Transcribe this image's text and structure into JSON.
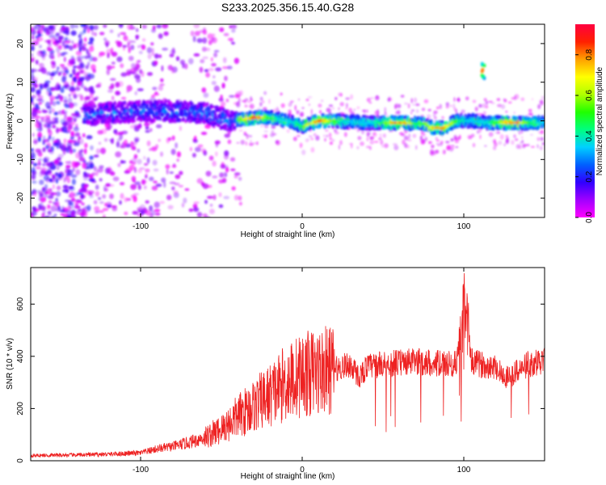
{
  "title": "S233.2025.356.15.40.G28",
  "chart_data": [
    {
      "type": "heatmap",
      "title": "S233.2025.356.15.40.G28",
      "xlabel": "Height of straight line (km)",
      "ylabel": "Frequency (Hz)",
      "xlim": [
        -168,
        150
      ],
      "ylim": [
        -25,
        25
      ],
      "x_ticks": [
        -100,
        0,
        100
      ],
      "x_tick_labels": [
        "-100",
        "0",
        "100"
      ],
      "y_ticks": [
        20,
        10,
        0,
        -10,
        -20
      ],
      "y_tick_labels": [
        "20",
        "10",
        "0",
        "-10",
        "-20"
      ],
      "colorbar": {
        "label": "Normalized spectral amplitude",
        "range": [
          0.0,
          0.95
        ],
        "ticks": [
          0.0,
          0.2,
          0.4,
          0.6,
          0.8
        ],
        "tick_labels": [
          "0.0",
          "0.2",
          "0.4",
          "0.6",
          "0.8"
        ],
        "colormap": [
          "#ff00ff",
          "#a000ff",
          "#3000ff",
          "#0060ff",
          "#00d0ff",
          "#00ff80",
          "#20ff00",
          "#b0ff00",
          "#ffff00",
          "#ffa000",
          "#ff2000",
          "#ff0040"
        ]
      },
      "ridge": {
        "x": [
          -135,
          -120,
          -100,
          -80,
          -60,
          -45,
          -35,
          -25,
          -15,
          -5,
          0,
          10,
          20,
          40,
          60,
          75,
          80,
          88,
          95,
          105,
          115,
          130,
          150
        ],
        "freq": [
          1.5,
          2,
          2.5,
          2.5,
          2,
          0,
          0.5,
          1,
          0.5,
          -0.5,
          -1.5,
          0,
          0,
          -0.5,
          -0.5,
          -0.8,
          -1.8,
          -1.8,
          0,
          0,
          -0.5,
          -0.5,
          -0.5
        ],
        "peak_amplitude_x": [
          -30,
          10,
          60,
          85,
          130
        ],
        "isolated_feature": {
          "x": 112,
          "freq": 13,
          "amplitude": 0.9
        }
      }
    },
    {
      "type": "line",
      "xlabel": "Height of straight line (km)",
      "ylabel": "SNR (10 * v/v)",
      "xlim": [
        -168,
        150
      ],
      "ylim": [
        0,
        740
      ],
      "x_ticks": [
        -100,
        0,
        100
      ],
      "x_tick_labels": [
        "-100",
        "0",
        "100"
      ],
      "y_ticks": [
        0,
        200,
        400,
        600
      ],
      "y_tick_labels": [
        "0",
        "200",
        "400",
        "600"
      ],
      "color": "#ee2222",
      "series": [
        {
          "x": [
            -168,
            -140,
            -120,
            -100,
            -90,
            -80,
            -70,
            -60,
            -50,
            -40,
            -30,
            -20,
            -10,
            0,
            10,
            20,
            30,
            35,
            40,
            50,
            60,
            70,
            80,
            90,
            95,
            99,
            100,
            101,
            102,
            104,
            110,
            120,
            125,
            130,
            140,
            150
          ],
          "values": [
            20,
            22,
            25,
            30,
            45,
            55,
            70,
            90,
            120,
            170,
            210,
            250,
            300,
            330,
            340,
            350,
            370,
            320,
            360,
            370,
            375,
            380,
            375,
            370,
            370,
            500,
            740,
            500,
            660,
            380,
            370,
            360,
            320,
            330,
            370,
            385
          ]
        }
      ]
    }
  ]
}
